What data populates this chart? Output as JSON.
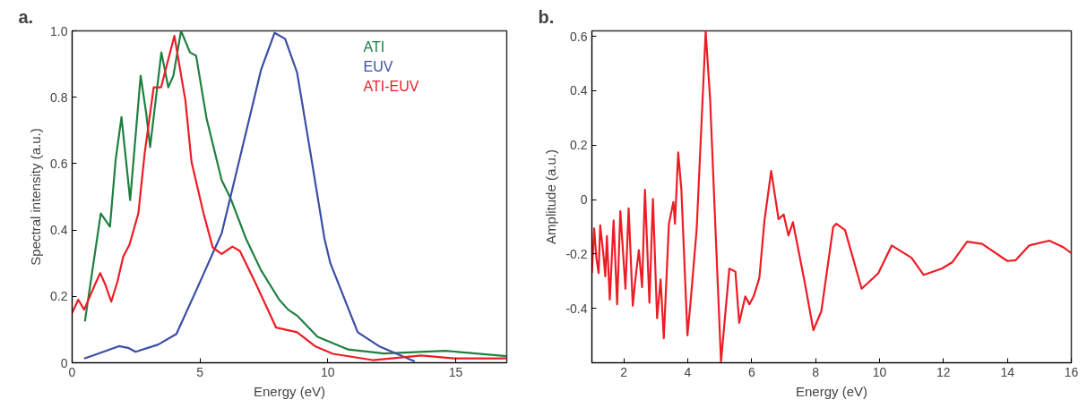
{
  "chart_data": [
    {
      "type": "line",
      "title": "a.",
      "xlabel": "Energy (eV)",
      "ylabel": "Spectral intensity (a.u.)",
      "xlim": [
        0,
        17
      ],
      "xticks": [
        0,
        5,
        10,
        15
      ],
      "ylim": [
        0,
        1
      ],
      "yticks": [
        0,
        0.2,
        0.4,
        0.6,
        0.8,
        {
          "value": 1,
          "label": "1.0"
        }
      ],
      "grid": false,
      "legend": "top right",
      "series": [
        {
          "name": "ATI",
          "color": "#1e8040",
          "x": [
            0.5,
            1.12,
            1.48,
            1.7,
            1.93,
            2.27,
            2.68,
            2.9,
            3.05,
            3.49,
            3.76,
            3.96,
            4.26,
            4.61,
            4.85,
            5.26,
            5.85,
            6.2,
            6.8,
            7.38,
            8.1,
            8.45,
            8.8,
            9.6,
            10.8,
            12.2,
            14.6,
            17
          ],
          "values": [
            0.125,
            0.45,
            0.41,
            0.61,
            0.74,
            0.49,
            0.865,
            0.75,
            0.65,
            0.935,
            0.83,
            0.865,
            1.0,
            0.935,
            0.925,
            0.735,
            0.55,
            0.495,
            0.374,
            0.28,
            0.19,
            0.16,
            0.142,
            0.078,
            0.04,
            0.028,
            0.036,
            0.02
          ]
        },
        {
          "name": "EUV",
          "color": "#3a4ea6",
          "x": [
            0.47,
            1.0,
            1.83,
            2.19,
            2.48,
            3.37,
            4.08,
            4.9,
            5.85,
            6.9,
            7.39,
            7.92,
            8.33,
            8.8,
            9.28,
            9.87,
            10.1,
            11.17,
            12.0,
            13.4
          ],
          "values": [
            0.013,
            0.027,
            0.05,
            0.045,
            0.033,
            0.055,
            0.087,
            0.226,
            0.39,
            0.726,
            0.883,
            0.994,
            0.976,
            0.874,
            0.652,
            0.374,
            0.3,
            0.092,
            0.05,
            0.004
          ]
        },
        {
          "name": "ATI-EUV",
          "color": "#ee1c25",
          "x": [
            0,
            0.24,
            0.47,
            0.89,
            1.1,
            1.3,
            1.53,
            1.77,
            2.0,
            2.24,
            2.59,
            2.84,
            3.19,
            3.48,
            4.0,
            4.43,
            4.67,
            5.14,
            5.5,
            5.85,
            6.27,
            6.56,
            7.15,
            7.98,
            8.8,
            9.5,
            10.2,
            11.76,
            13.65,
            14.95,
            17
          ],
          "values": [
            0.15,
            0.19,
            0.16,
            0.235,
            0.27,
            0.235,
            0.184,
            0.244,
            0.32,
            0.355,
            0.45,
            0.633,
            0.83,
            0.83,
            0.985,
            0.79,
            0.605,
            0.45,
            0.347,
            0.328,
            0.35,
            0.337,
            0.244,
            0.106,
            0.092,
            0.05,
            0.027,
            0.008,
            0.022,
            0.013,
            0.013
          ]
        }
      ]
    },
    {
      "type": "line",
      "title": "b.",
      "xlabel": "Energy (eV)",
      "ylabel": "Amplitude (a.u.)",
      "xlim": [
        1,
        16
      ],
      "xticks": [
        2,
        4,
        6,
        8,
        10,
        12,
        14,
        16
      ],
      "ylim": [
        -0.6,
        0.62
      ],
      "yticks": [
        -0.4,
        -0.2,
        0,
        0.2,
        0.4,
        0.6
      ],
      "grid": false,
      "series": [
        {
          "color": "#ee1c25",
          "x": [
            1.0,
            1.07,
            1.14,
            1.21,
            1.26,
            1.37,
            1.42,
            1.47,
            1.56,
            1.68,
            1.79,
            1.89,
            2.05,
            2.15,
            2.28,
            2.36,
            2.47,
            2.57,
            2.66,
            2.8,
            2.91,
            3.04,
            3.15,
            3.25,
            3.41,
            3.55,
            3.6,
            3.7,
            3.8,
            3.99,
            4.09,
            4.28,
            4.56,
            4.7,
            4.88,
            5.04,
            5.3,
            5.49,
            5.61,
            5.8,
            5.93,
            6.06,
            6.24,
            6.4,
            6.61,
            6.84,
            7.0,
            7.15,
            7.29,
            7.66,
            7.93,
            8.18,
            8.55,
            8.65,
            8.92,
            9.44,
            9.96,
            10.38,
            11.0,
            11.38,
            11.95,
            12.27,
            12.74,
            13.21,
            14.0,
            14.26,
            14.68,
            15.31,
            15.73,
            16.0
          ],
          "values": [
            -0.27,
            -0.106,
            -0.214,
            -0.27,
            -0.095,
            -0.214,
            -0.282,
            -0.134,
            -0.368,
            -0.077,
            -0.385,
            -0.043,
            -0.328,
            -0.032,
            -0.39,
            -0.294,
            -0.186,
            -0.322,
            0.036,
            -0.379,
            0.002,
            -0.436,
            -0.294,
            -0.51,
            -0.089,
            -0.009,
            -0.089,
            0.173,
            0.036,
            -0.499,
            -0.374,
            -0.106,
            0.617,
            0.367,
            -0.146,
            -0.596,
            -0.254,
            -0.265,
            -0.453,
            -0.356,
            -0.385,
            -0.356,
            -0.288,
            -0.077,
            0.105,
            -0.072,
            -0.055,
            -0.132,
            -0.083,
            -0.305,
            -0.48,
            -0.41,
            -0.1,
            -0.089,
            -0.112,
            -0.328,
            -0.271,
            -0.169,
            -0.214,
            -0.277,
            -0.254,
            -0.231,
            -0.155,
            -0.163,
            -0.226,
            -0.223,
            -0.169,
            -0.151,
            -0.174,
            -0.197
          ]
        }
      ]
    }
  ]
}
